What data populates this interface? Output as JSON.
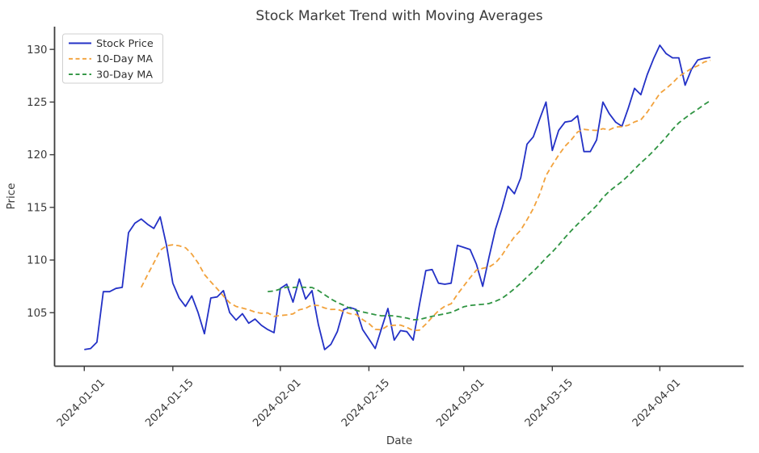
{
  "chart_data": {
    "type": "line",
    "title": "Stock Market Trend with Moving Averages",
    "xlabel": "Date",
    "ylabel": "Price",
    "grid": false,
    "legend_position": "upper left",
    "axis_color": "#3d3d3d",
    "x_tick_labels": [
      "2024-01-01",
      "2024-01-15",
      "2024-02-01",
      "2024-02-15",
      "2024-03-01",
      "2024-03-15",
      "2024-04-01"
    ],
    "x_tick_day_index": [
      0,
      14,
      31,
      45,
      60,
      74,
      91
    ],
    "y_ticks": [
      105,
      110,
      115,
      120,
      125,
      130
    ],
    "x_domain_days": [
      -4.7,
      104.25
    ],
    "y_domain": [
      99.92,
      132.16
    ],
    "start_date_label": "2024-01-01",
    "n_days": 100,
    "series": [
      {
        "name": "Stock Price",
        "color": "#2331c6",
        "style": "solid",
        "role": "price",
        "values": [
          101.5,
          101.6,
          102.2,
          107.0,
          107.0,
          107.3,
          107.4,
          112.6,
          113.5,
          113.9,
          113.4,
          113.0,
          114.1,
          111.4,
          107.8,
          106.4,
          105.6,
          106.6,
          105.0,
          103.0,
          106.4,
          106.5,
          107.1,
          105.0,
          104.3,
          104.9,
          104.0,
          104.4,
          103.8,
          103.4,
          103.1,
          107.3,
          107.7,
          106.0,
          108.2,
          106.3,
          107.1,
          103.9,
          101.5,
          102.0,
          103.2,
          105.3,
          105.5,
          105.3,
          103.4,
          102.5,
          101.6,
          103.5,
          105.4,
          102.4,
          103.3,
          103.2,
          102.4,
          105.8,
          109.0,
          109.1,
          107.8,
          107.7,
          107.8,
          111.4,
          111.2,
          111.0,
          109.6,
          107.5,
          110.3,
          112.9,
          114.8,
          117.0,
          116.3,
          117.8,
          121.0,
          121.7,
          123.4,
          125.0,
          120.4,
          122.3,
          123.1,
          123.2,
          123.7,
          120.3,
          120.3,
          121.4,
          125.0,
          123.9,
          123.1,
          122.7,
          124.4,
          126.3,
          125.7,
          127.6,
          129.1,
          130.4,
          129.6,
          129.2,
          129.2,
          126.6,
          128.1,
          129.0,
          129.15,
          129.25
        ]
      },
      {
        "name": "10-Day MA",
        "color": "#f2a23c",
        "style": "dashed",
        "role": "moving-average",
        "window": 10
      },
      {
        "name": "30-Day MA",
        "color": "#2f9442",
        "style": "dashed",
        "role": "moving-average",
        "window": 30
      }
    ]
  }
}
